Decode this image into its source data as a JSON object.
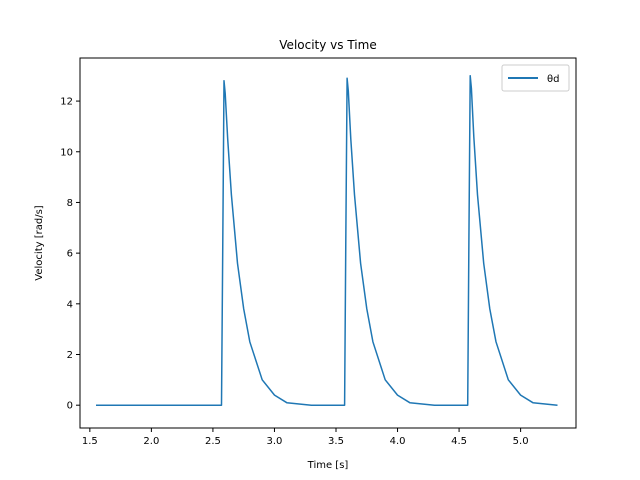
{
  "chart_data": {
    "type": "line",
    "title": "Velocity vs Time",
    "xlabel": "Time [s]",
    "ylabel": "Velocity [rad/s]",
    "xlim": [
      1.42,
      5.45
    ],
    "ylim": [
      -0.9,
      13.7
    ],
    "xticks": [
      1.5,
      2.0,
      2.5,
      3.0,
      3.5,
      4.0,
      4.5,
      5.0
    ],
    "xtick_labels": [
      "1.5",
      "2.0",
      "2.5",
      "3.0",
      "3.5",
      "4.0",
      "4.5",
      "5.0"
    ],
    "yticks": [
      0,
      2,
      4,
      6,
      8,
      10,
      12
    ],
    "ytick_labels": [
      "0",
      "2",
      "4",
      "6",
      "8",
      "10",
      "12"
    ],
    "grid": false,
    "legend": "top-right",
    "color": "#1f77b4",
    "series": [
      {
        "name": "θd",
        "x": [
          1.55,
          2.0,
          2.5,
          2.57,
          2.58,
          2.59,
          2.6,
          2.62,
          2.65,
          2.7,
          2.75,
          2.8,
          2.9,
          3.0,
          3.1,
          3.3,
          3.5,
          3.57,
          3.58,
          3.59,
          3.6,
          3.62,
          3.65,
          3.7,
          3.75,
          3.8,
          3.9,
          4.0,
          4.1,
          4.3,
          4.5,
          4.57,
          4.58,
          4.59,
          4.6,
          4.62,
          4.65,
          4.7,
          4.75,
          4.8,
          4.9,
          5.0,
          5.1,
          5.3
        ],
        "y": [
          0,
          0,
          0,
          0,
          6.5,
          12.8,
          12.3,
          10.5,
          8.3,
          5.6,
          3.8,
          2.5,
          1.0,
          0.4,
          0.1,
          0,
          0,
          0,
          6.5,
          12.9,
          12.4,
          10.5,
          8.3,
          5.6,
          3.8,
          2.5,
          1.0,
          0.4,
          0.1,
          0,
          0,
          0,
          6.5,
          13.0,
          12.5,
          10.6,
          8.3,
          5.6,
          3.8,
          2.5,
          1.0,
          0.4,
          0.1,
          0
        ]
      }
    ]
  }
}
